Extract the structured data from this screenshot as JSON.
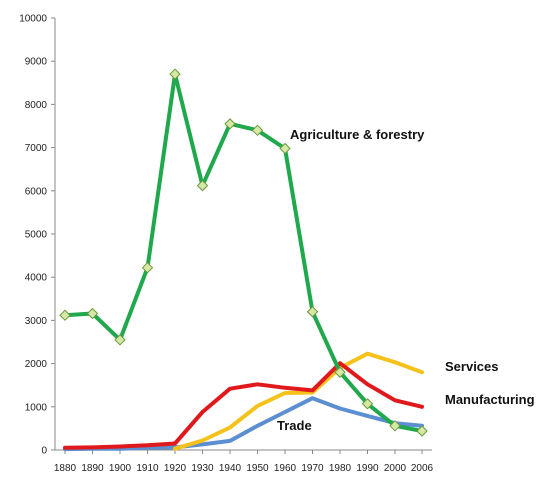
{
  "chart_data": {
    "type": "line",
    "title": "",
    "xlabel": "",
    "ylabel": "",
    "categories": [
      "1880",
      "1890",
      "1900",
      "1910",
      "1920",
      "1930",
      "1940",
      "1950",
      "1960",
      "1970",
      "1980",
      "1990",
      "2000",
      "2006"
    ],
    "ylim": [
      0,
      10000
    ],
    "yticks": [
      "0",
      "1000",
      "2000",
      "3000",
      "4000",
      "5000",
      "6000",
      "7000",
      "8000",
      "9000",
      "10000"
    ],
    "grid": false,
    "series": [
      {
        "name": "Agriculture & forestry",
        "color": "#1fa84c",
        "marker": "diamond",
        "values": [
          3120,
          3160,
          2550,
          4220,
          8700,
          6120,
          7550,
          7400,
          6980,
          3200,
          1800,
          1070,
          560,
          440
        ]
      },
      {
        "name": "Services",
        "color": "#f5c21b",
        "marker": "none",
        "values": [
          null,
          null,
          null,
          null,
          30,
          220,
          520,
          1020,
          1320,
          1330,
          1900,
          2230,
          2030,
          1800
        ]
      },
      {
        "name": "Manufacturing",
        "color": "#e0191c",
        "marker": "none",
        "values": [
          50,
          60,
          80,
          110,
          150,
          880,
          1420,
          1520,
          1440,
          1380,
          2010,
          1520,
          1150,
          1000
        ]
      },
      {
        "name": "Trade",
        "color": "#5b8fd1",
        "marker": "none",
        "values": [
          20,
          30,
          30,
          50,
          60,
          130,
          210,
          560,
          880,
          1200,
          960,
          790,
          620,
          560
        ]
      }
    ]
  }
}
